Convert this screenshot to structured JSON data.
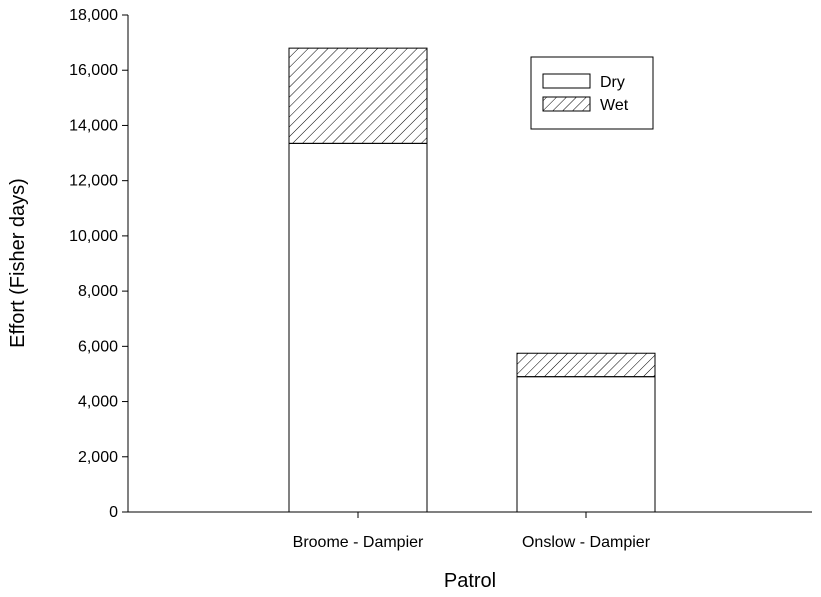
{
  "chart_data": {
    "type": "bar",
    "stacked": true,
    "categories": [
      "Broome - Dampier",
      "Onslow - Dampier"
    ],
    "series": [
      {
        "name": "Dry",
        "values": [
          13350,
          4900
        ],
        "pattern": "none"
      },
      {
        "name": "Wet",
        "values": [
          3450,
          850
        ],
        "pattern": "diagonal-hatch"
      }
    ],
    "xlabel": "Patrol",
    "ylabel": "Effort (Fisher days)",
    "ylim": [
      0,
      18000
    ],
    "yticks": [
      "0",
      "2,000",
      "4,000",
      "6,000",
      "8,000",
      "10,000",
      "12,000",
      "14,000",
      "16,000",
      "18,000"
    ],
    "ytick_values": [
      0,
      2000,
      4000,
      6000,
      8000,
      10000,
      12000,
      14000,
      16000,
      18000
    ],
    "grid": false,
    "legend_position": "top-right"
  }
}
